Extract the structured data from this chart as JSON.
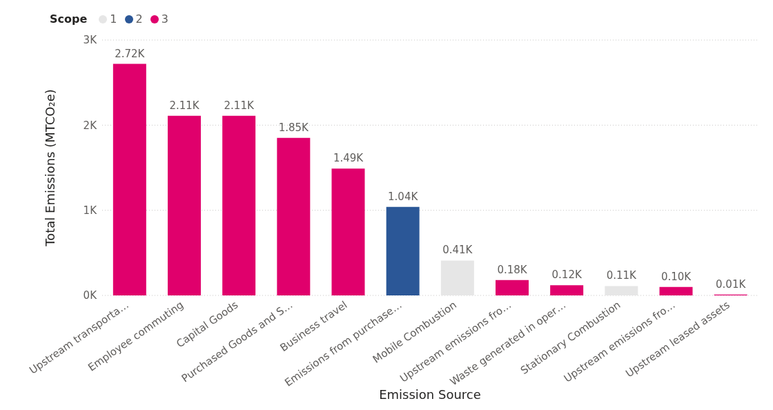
{
  "chart_data": {
    "type": "bar",
    "stacked": true,
    "xlabel": "Emission Source",
    "ylabel": "Total Emissions (MTCO₂e)",
    "legend_title": "Scope",
    "legend": "top left",
    "grid": "y",
    "categories": [
      "Upstream transporta…",
      "Employee commuting",
      "Capital Goods",
      "Purchased Goods and S…",
      "Business travel",
      "Emissions from purchase…",
      "Mobile Combustion",
      "Upstream emissions fro…",
      "Waste generated in oper…",
      "Stationary Combustion",
      "Upstream emissions fro…",
      "Upstream leased assets"
    ],
    "ylim": [
      0,
      3000
    ],
    "yticks": [
      {
        "value": 0,
        "label": "0K"
      },
      {
        "value": 1000,
        "label": "1K"
      },
      {
        "value": 2000,
        "label": "2K"
      },
      {
        "value": 3000,
        "label": "3K"
      }
    ],
    "series": [
      {
        "name": "1",
        "color": "#e6e6e6",
        "values": [
          null,
          null,
          null,
          null,
          null,
          null,
          410,
          null,
          null,
          110,
          null,
          null
        ],
        "value_labels": [
          null,
          null,
          null,
          null,
          null,
          null,
          "0.41K",
          null,
          null,
          "0.11K",
          null,
          null
        ]
      },
      {
        "name": "2",
        "color": "#2b5797",
        "values": [
          null,
          null,
          null,
          null,
          null,
          1040,
          null,
          null,
          null,
          null,
          null,
          null
        ],
        "value_labels": [
          null,
          null,
          null,
          null,
          null,
          "1.04K",
          null,
          null,
          null,
          null,
          null,
          null
        ]
      },
      {
        "name": "3",
        "color": "#e0006c",
        "values": [
          2720,
          2110,
          2110,
          1850,
          1490,
          null,
          null,
          180,
          120,
          null,
          100,
          10
        ],
        "value_labels": [
          "2.72K",
          "2.11K",
          "2.11K",
          "1.85K",
          "1.49K",
          null,
          null,
          "0.18K",
          "0.12K",
          null,
          "0.10K",
          "0.01K"
        ]
      }
    ]
  }
}
